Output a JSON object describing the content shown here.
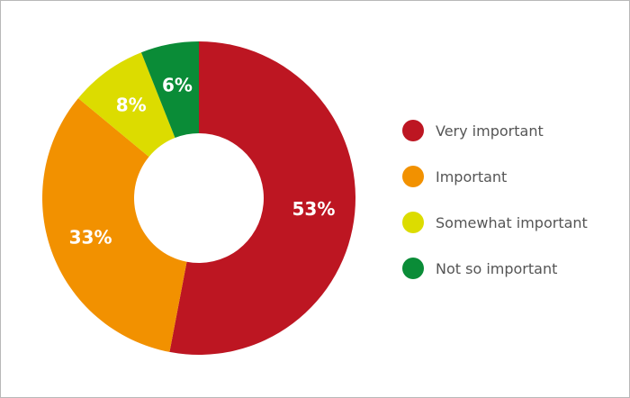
{
  "chart_data": {
    "type": "pie",
    "donut": true,
    "categories": [
      "Very important",
      "Important",
      "Somewhat important",
      "Not so important"
    ],
    "values": [
      53,
      33,
      8,
      6
    ],
    "value_labels": [
      "53%",
      "33%",
      "8%",
      "6%"
    ],
    "colors": [
      "#bd1622",
      "#f29100",
      "#dcdc00",
      "#0a8c37"
    ],
    "legend_position": "right",
    "start": "top, clockwise"
  }
}
